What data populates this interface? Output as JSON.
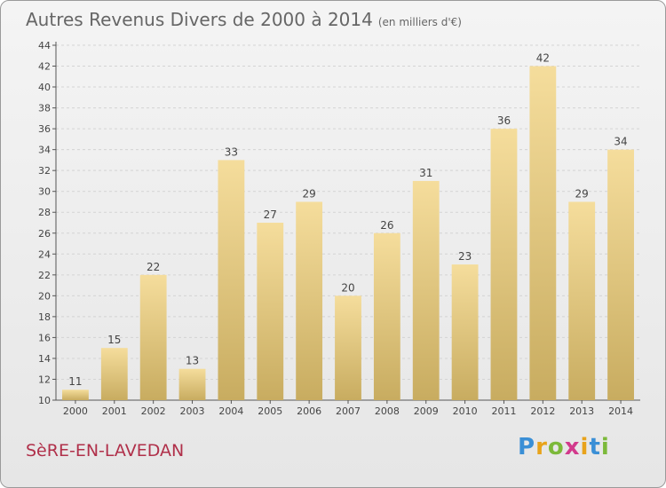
{
  "header": {
    "title": "Autres Revenus Divers de 2000 à 2014",
    "unit": "(en milliers d'€)"
  },
  "footer": {
    "commune": "SèRE-EN-LAVEDAN",
    "brand": "Proxiti"
  },
  "colors": {
    "bar_light": "#f5dd9c",
    "bar_dark": "#c8ac60",
    "grid": "#d4d4d4"
  },
  "chart_data": {
    "type": "bar",
    "title": "Autres Revenus Divers de 2000 à 2014",
    "subtitle": "(en milliers d'€)",
    "xlabel": "",
    "ylabel": "",
    "categories": [
      "2000",
      "2001",
      "2002",
      "2003",
      "2004",
      "2005",
      "2006",
      "2007",
      "2008",
      "2009",
      "2010",
      "2011",
      "2012",
      "2013",
      "2014"
    ],
    "values": [
      11,
      15,
      22,
      13,
      33,
      27,
      29,
      20,
      26,
      31,
      23,
      36,
      42,
      29,
      34
    ],
    "ylim": [
      10,
      44
    ],
    "yticks": [
      10,
      12,
      14,
      16,
      18,
      20,
      22,
      24,
      26,
      28,
      30,
      32,
      34,
      36,
      38,
      40,
      42,
      44
    ],
    "grid": true,
    "data_labels": true
  }
}
